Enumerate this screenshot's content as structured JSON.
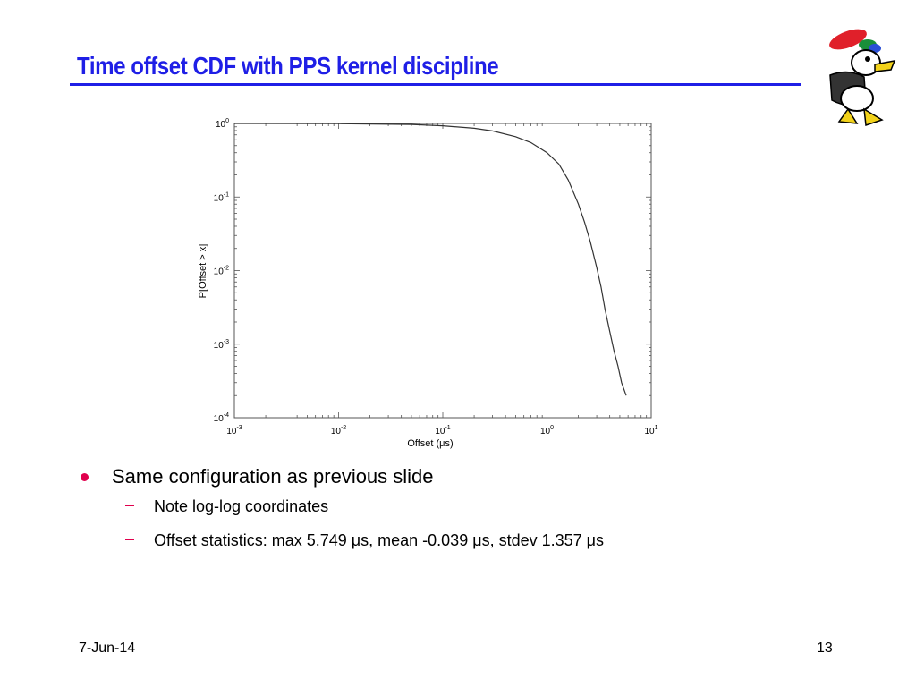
{
  "slide": {
    "title": "Time offset CDF with PPS kernel discipline",
    "footer_date": "7-Jun-14",
    "page_number": "13",
    "accent_color": "#1f1fe6",
    "bullet_color": "#e0004d"
  },
  "bullets": {
    "main": "Same configuration as previous slide",
    "sub1": "Note log-log coordinates",
    "sub2_pre": "Offset statistics: max 5.749 ",
    "sub2_mid1": "s, mean -0.039 ",
    "sub2_mid2": "s, stdev 1.357 ",
    "sub2_post": "s",
    "mu": "μ"
  },
  "chart_data": {
    "type": "line",
    "xlabel": "Offset (μs)",
    "ylabel": "P[Offset > x]",
    "xscale": "log",
    "yscale": "log",
    "xlim": [
      0.001,
      10
    ],
    "ylim": [
      0.0001,
      1
    ],
    "x_ticks": [
      "10^-3",
      "10^-2",
      "10^-1",
      "10^0",
      "10^1"
    ],
    "y_ticks": [
      "10^0",
      "10^-1",
      "10^-2",
      "10^-3",
      "10^-4"
    ],
    "grid": false,
    "series": [
      {
        "x": [
          0.001,
          0.01,
          0.05,
          0.1,
          0.2,
          0.3,
          0.5,
          0.7,
          1.0,
          1.3,
          1.6,
          2.0,
          2.3,
          2.6,
          3.0,
          3.3,
          3.6,
          4.0,
          4.4,
          4.8,
          5.2,
          5.749
        ],
        "y": [
          1.0,
          0.995,
          0.97,
          0.93,
          0.86,
          0.79,
          0.66,
          0.55,
          0.4,
          0.28,
          0.17,
          0.08,
          0.045,
          0.025,
          0.011,
          0.006,
          0.003,
          0.0015,
          0.0008,
          0.0005,
          0.0003,
          0.0002
        ]
      }
    ]
  }
}
